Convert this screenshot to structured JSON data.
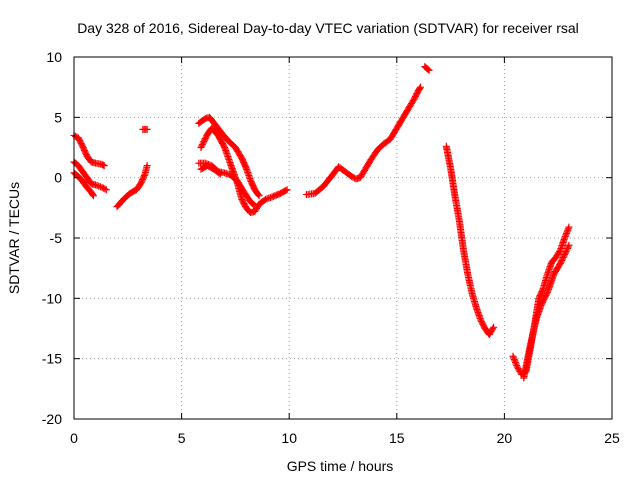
{
  "chart_data": {
    "type": "scatter",
    "title": "Day 328 of 2016, Sidereal Day-to-day VTEC variation (SDTVAR) for receiver rsal",
    "xlabel": "GPS time / hours",
    "ylabel": "SDTVAR / TECUs",
    "xlim": [
      0,
      25
    ],
    "ylim": [
      -20,
      10
    ],
    "xticks": [
      0,
      5,
      10,
      15,
      20,
      25
    ],
    "yticks": [
      -20,
      -15,
      -10,
      -5,
      0,
      5,
      10
    ],
    "xtick_labels": [
      "0",
      "5",
      "10",
      "15",
      "20",
      "25"
    ],
    "ytick_labels": [
      "-20",
      "-15",
      "-10",
      "-5",
      "0",
      "5",
      "10"
    ],
    "grid": true,
    "legend": "none",
    "marker": "plus",
    "series": [
      {
        "color": "#ff0000",
        "tracks": [
          [
            [
              0.0,
              3.5
            ],
            [
              0.2,
              3.3
            ],
            [
              0.4,
              2.6
            ],
            [
              0.6,
              1.8
            ],
            [
              0.8,
              1.3
            ],
            [
              1.0,
              1.2
            ],
            [
              1.3,
              1.1
            ],
            [
              1.4,
              1.0
            ]
          ],
          [
            [
              0.0,
              1.3
            ],
            [
              0.2,
              1.0
            ],
            [
              0.4,
              0.5
            ],
            [
              0.6,
              0.0
            ],
            [
              0.8,
              -0.5
            ],
            [
              1.0,
              -0.6
            ],
            [
              1.3,
              -0.8
            ],
            [
              1.5,
              -1.0
            ]
          ],
          [
            [
              0.0,
              0.4
            ],
            [
              0.2,
              0.1
            ],
            [
              0.4,
              -0.3
            ],
            [
              0.6,
              -0.8
            ],
            [
              0.8,
              -1.2
            ],
            [
              0.9,
              -1.5
            ]
          ],
          [
            [
              2.0,
              -2.4
            ],
            [
              2.3,
              -1.8
            ],
            [
              2.6,
              -1.3
            ],
            [
              2.9,
              -1.0
            ],
            [
              3.1,
              -0.5
            ],
            [
              3.3,
              0.3
            ],
            [
              3.4,
              1.0
            ]
          ],
          [
            [
              3.2,
              4.0
            ],
            [
              3.4,
              4.0
            ]
          ],
          [
            [
              5.8,
              4.5
            ],
            [
              6.1,
              4.9
            ],
            [
              6.3,
              5.0
            ],
            [
              6.6,
              4.3
            ],
            [
              6.9,
              3.6
            ],
            [
              7.2,
              3.0
            ],
            [
              7.5,
              2.5
            ],
            [
              7.8,
              1.6
            ],
            [
              8.0,
              0.8
            ],
            [
              8.2,
              -0.2
            ],
            [
              8.4,
              -1.0
            ],
            [
              8.6,
              -1.5
            ]
          ],
          [
            [
              5.9,
              2.5
            ],
            [
              6.2,
              3.6
            ],
            [
              6.4,
              4.1
            ],
            [
              6.7,
              3.5
            ],
            [
              7.0,
              2.5
            ],
            [
              7.3,
              1.0
            ],
            [
              7.6,
              -0.5
            ],
            [
              7.8,
              -1.8
            ],
            [
              8.0,
              -2.5
            ],
            [
              8.2,
              -2.9
            ],
            [
              8.4,
              -2.8
            ],
            [
              8.6,
              -2.2
            ],
            [
              8.9,
              -1.8
            ],
            [
              9.2,
              -1.6
            ],
            [
              9.6,
              -1.3
            ],
            [
              9.9,
              -1.0
            ]
          ],
          [
            [
              5.8,
              1.2
            ],
            [
              6.1,
              1.2
            ],
            [
              6.4,
              1.0
            ],
            [
              6.7,
              0.5
            ],
            [
              7.0,
              0.4
            ],
            [
              7.3,
              0.2
            ],
            [
              7.6,
              -0.3
            ],
            [
              7.9,
              -1.2
            ],
            [
              8.2,
              -2.0
            ],
            [
              8.4,
              -2.3
            ]
          ],
          [
            [
              5.9,
              0.7
            ],
            [
              6.2,
              1.0
            ],
            [
              6.5,
              0.7
            ],
            [
              6.8,
              0.3
            ]
          ],
          [
            [
              10.8,
              -1.4
            ],
            [
              11.2,
              -1.3
            ],
            [
              11.6,
              -0.7
            ],
            [
              12.0,
              0.2
            ],
            [
              12.3,
              0.9
            ],
            [
              12.6,
              0.5
            ],
            [
              12.9,
              0.1
            ],
            [
              13.1,
              -0.1
            ],
            [
              13.3,
              0.0
            ],
            [
              13.5,
              0.6
            ],
            [
              13.8,
              1.5
            ],
            [
              14.1,
              2.3
            ],
            [
              14.4,
              2.8
            ],
            [
              14.7,
              3.2
            ],
            [
              15.0,
              4.1
            ],
            [
              15.3,
              5.0
            ],
            [
              15.6,
              5.9
            ],
            [
              15.8,
              6.5
            ],
            [
              16.0,
              7.2
            ],
            [
              16.1,
              7.5
            ]
          ],
          [
            [
              16.3,
              9.2
            ],
            [
              16.5,
              8.9
            ]
          ],
          [
            [
              17.3,
              2.6
            ],
            [
              17.5,
              0.8
            ],
            [
              17.7,
              -1.5
            ],
            [
              17.9,
              -3.5
            ],
            [
              18.1,
              -6.0
            ],
            [
              18.3,
              -8.0
            ],
            [
              18.5,
              -9.6
            ],
            [
              18.7,
              -10.8
            ],
            [
              18.9,
              -11.8
            ],
            [
              19.1,
              -12.5
            ],
            [
              19.3,
              -13.0
            ],
            [
              19.5,
              -12.4
            ]
          ],
          [
            [
              20.4,
              -14.8
            ],
            [
              20.6,
              -15.7
            ],
            [
              20.8,
              -16.3
            ],
            [
              21.0,
              -16.1
            ],
            [
              21.2,
              -14.2
            ],
            [
              21.4,
              -12.2
            ],
            [
              21.6,
              -10.0
            ],
            [
              21.8,
              -9.2
            ],
            [
              22.0,
              -8.0
            ],
            [
              22.2,
              -7.0
            ],
            [
              22.4,
              -6.6
            ],
            [
              22.6,
              -6.0
            ],
            [
              22.8,
              -5.0
            ],
            [
              23.0,
              -4.1
            ]
          ],
          [
            [
              20.9,
              -16.6
            ],
            [
              21.1,
              -14.8
            ],
            [
              21.3,
              -13.1
            ],
            [
              21.5,
              -11.6
            ],
            [
              21.7,
              -10.6
            ],
            [
              22.0,
              -9.5
            ],
            [
              22.3,
              -8.0
            ],
            [
              22.6,
              -7.1
            ],
            [
              22.9,
              -6.0
            ],
            [
              23.0,
              -5.6
            ]
          ]
        ]
      }
    ]
  }
}
